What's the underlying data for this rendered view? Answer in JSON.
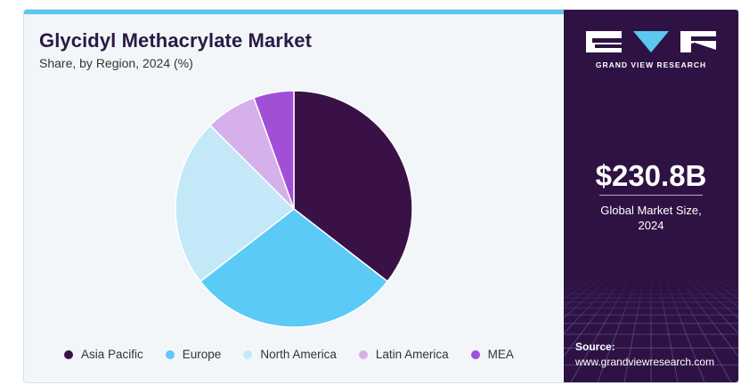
{
  "header": {
    "title": "Glycidyl Methacrylate Market",
    "subtitle": "Share, by Region, 2024 (%)"
  },
  "colors": {
    "accent": "#5bc8f0",
    "panel": "#2f1244"
  },
  "chart_data": {
    "type": "pie",
    "title": "Glycidyl Methacrylate Market",
    "subtitle": "Share, by Region, 2024 (%)",
    "categories": [
      "Asia Pacific",
      "Europe",
      "North America",
      "Latin America",
      "MEA"
    ],
    "values": [
      35.5,
      29.0,
      23.0,
      7.0,
      5.5
    ],
    "colors": [
      "#3a1146",
      "#5ccaf6",
      "#c3e9f8",
      "#d6b0ea",
      "#a24fd8"
    ],
    "legend_position": "bottom",
    "start_angle": "12 o'clock",
    "direction": "clockwise"
  },
  "legend": {
    "items": [
      {
        "label": "Asia Pacific",
        "color": "#3a1146"
      },
      {
        "label": "Europe",
        "color": "#5ccaf6"
      },
      {
        "label": "North America",
        "color": "#c3e9f8"
      },
      {
        "label": "Latin America",
        "color": "#d6b0ea"
      },
      {
        "label": "MEA",
        "color": "#a24fd8"
      }
    ]
  },
  "sidebar": {
    "logo_text": "GRAND VIEW RESEARCH",
    "market_size": "$230.8B",
    "market_size_label_line1": "Global Market Size,",
    "market_size_label_line2": "2024",
    "source_label": "Source:",
    "source_url": "www.grandviewresearch.com"
  }
}
